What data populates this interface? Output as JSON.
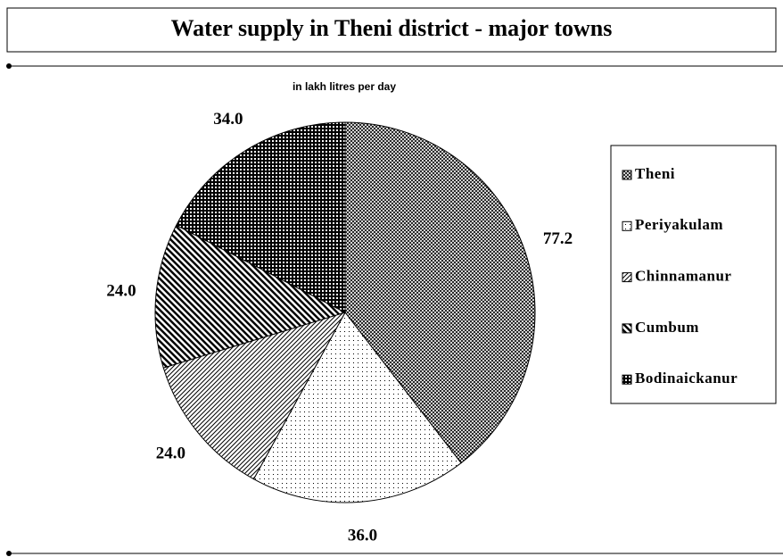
{
  "chart_data": {
    "type": "pie",
    "title": "Water supply in Theni district - major towns",
    "subtitle": "in lakh litres per day",
    "categories": [
      "Theni",
      "Periyakulam",
      "Chinnamanur",
      "Cumbum",
      "Bodinaickanur"
    ],
    "values": [
      77.2,
      36.0,
      24.0,
      24.0,
      34.0
    ],
    "value_labels": [
      "77.2",
      "36.0",
      "24.0",
      "24.0",
      "34.0"
    ],
    "legend": "right"
  }
}
